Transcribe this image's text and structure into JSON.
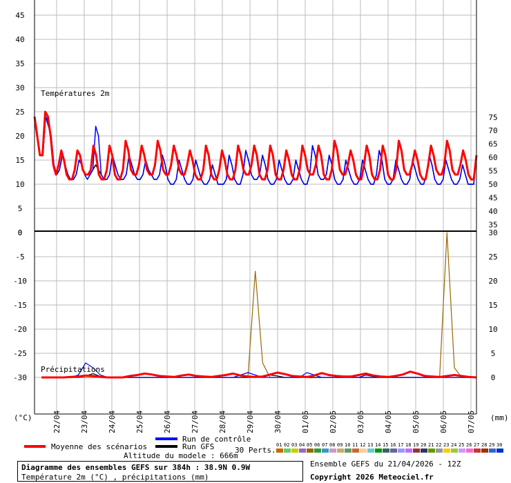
{
  "chart_data": [
    {
      "type": "line",
      "title": "Températures 2m",
      "ylim": [
        0,
        45
      ],
      "y_ticks_left": [
        "45",
        "40",
        "35",
        "30",
        "25",
        "20",
        "15",
        "10",
        "5",
        "0"
      ],
      "y_ticks_right": [
        "75",
        "70",
        "65",
        "60",
        "55",
        "50",
        "45",
        "40",
        "35"
      ],
      "grid": true,
      "x_step_hours": 6,
      "series": [
        {
          "name": "Moyenne des scénarios",
          "color": "#ff0000",
          "values": [
            24,
            20,
            16,
            16,
            25,
            24,
            20,
            14,
            12,
            14,
            17,
            15,
            12,
            11,
            11,
            13,
            17,
            16,
            13,
            12,
            12,
            13,
            18,
            16,
            12,
            11,
            11,
            13,
            18,
            16,
            12,
            11,
            11,
            13,
            19,
            17,
            13,
            12,
            12,
            14,
            18,
            16,
            13,
            12,
            12,
            14,
            19,
            17,
            13,
            12,
            12,
            14,
            18,
            16,
            13,
            12,
            12,
            14,
            17,
            15,
            12,
            11,
            11,
            13,
            18,
            16,
            12,
            11,
            11,
            13,
            17,
            15,
            12,
            11,
            11,
            13,
            18,
            16,
            13,
            12,
            12,
            14,
            18,
            16,
            12,
            11,
            11,
            13,
            18,
            16,
            12,
            11,
            11,
            13,
            17,
            15,
            12,
            11,
            11,
            13,
            18,
            16,
            13,
            12,
            12,
            14,
            18,
            16,
            12,
            11,
            11,
            13,
            19,
            17,
            13,
            12,
            12,
            14,
            17,
            15,
            12,
            11,
            11,
            14,
            18,
            16,
            12,
            11,
            11,
            13,
            18,
            16,
            12,
            11,
            11,
            13,
            19,
            17,
            13,
            12,
            12,
            14,
            17,
            15,
            12,
            11,
            11,
            14,
            18,
            16,
            13,
            12,
            12,
            14,
            19,
            17,
            13,
            12,
            12,
            14,
            17,
            15,
            12,
            11,
            11,
            16
          ]
        },
        {
          "name": "Run de contrôle",
          "color": "#0000ff",
          "values": [
            24,
            20,
            16,
            16,
            24,
            22,
            20,
            14,
            12,
            13,
            16,
            14,
            12,
            11,
            11,
            12,
            15,
            14,
            12,
            11,
            12,
            13,
            22,
            20,
            12,
            11,
            11,
            12,
            16,
            14,
            12,
            11,
            11,
            12,
            16,
            14,
            12,
            11,
            11,
            12,
            15,
            13,
            12,
            11,
            11,
            12,
            16,
            14,
            11,
            10,
            10,
            11,
            15,
            13,
            11,
            10,
            10,
            11,
            15,
            13,
            11,
            10,
            10,
            11,
            14,
            12,
            10,
            10,
            10,
            11,
            16,
            14,
            11,
            10,
            10,
            12,
            17,
            15,
            12,
            11,
            11,
            12,
            16,
            14,
            11,
            10,
            10,
            11,
            15,
            13,
            11,
            10,
            10,
            11,
            15,
            13,
            11,
            10,
            10,
            12,
            18,
            16,
            12,
            11,
            11,
            12,
            16,
            14,
            11,
            10,
            10,
            11,
            15,
            13,
            11,
            10,
            10,
            11,
            15,
            13,
            11,
            10,
            10,
            12,
            17,
            15,
            11,
            10,
            10,
            11,
            15,
            13,
            11,
            10,
            10,
            11,
            15,
            13,
            11,
            10,
            10,
            12,
            16,
            14,
            11,
            10,
            10,
            11,
            15,
            13,
            11,
            10,
            10,
            11,
            14,
            12,
            10,
            10,
            10,
            16
          ]
        },
        {
          "name": "Run GFS",
          "color": "#000000",
          "values": [
            24,
            20,
            16,
            16,
            24,
            23,
            20,
            13,
            12,
            13,
            16,
            14,
            12,
            11,
            11,
            12,
            15,
            14,
            12,
            12,
            12,
            13,
            14,
            13,
            12,
            11,
            11,
            12,
            16,
            14,
            12,
            11,
            11,
            12,
            16,
            14,
            12,
            11,
            11,
            12,
            15,
            13,
            12,
            11,
            11,
            12,
            16,
            14,
            11,
            10,
            10,
            11,
            15,
            13,
            11,
            10,
            10,
            11,
            15,
            13,
            11,
            10,
            10,
            11,
            14,
            12,
            10,
            10,
            10,
            11,
            16,
            14,
            11,
            10,
            10,
            12,
            17,
            15,
            12,
            11,
            11,
            12,
            16,
            14,
            11,
            10,
            10,
            11,
            15,
            13,
            11,
            10,
            10,
            11,
            15,
            13,
            11,
            10,
            10,
            12,
            18,
            16,
            12,
            11,
            11,
            12,
            16,
            14,
            11,
            10,
            10,
            11,
            15,
            13,
            11,
            10,
            10,
            11,
            15,
            13,
            11,
            10,
            10,
            12,
            17,
            15,
            11,
            10,
            10,
            11,
            15,
            13,
            11,
            10,
            10,
            11,
            15,
            13,
            11,
            10,
            10,
            12,
            16,
            14,
            11,
            10,
            10,
            11,
            15,
            13,
            11,
            10,
            10,
            11,
            14,
            12,
            10,
            10,
            10,
            16
          ]
        }
      ]
    },
    {
      "type": "line",
      "title": "Précipitations",
      "ylim": [
        -33,
        0
      ],
      "y_ticks_left": [
        "0",
        "-5",
        "-10",
        "-15",
        "-20",
        "-25",
        "-30"
      ],
      "y_ticks_right": [
        "30",
        "25",
        "20",
        "15",
        "10",
        "5",
        "0"
      ],
      "grid": true,
      "series": [
        {
          "name": "Moyenne des scénarios",
          "color": "#ff0000",
          "values": [
            0,
            0,
            0,
            0,
            0.1,
            0.2,
            0.4,
            0.3,
            0.1,
            0,
            0,
            0,
            0.3,
            0.5,
            0.8,
            0.6,
            0.3,
            0.2,
            0.1,
            0.4,
            0.6,
            0.3,
            0.2,
            0.1,
            0.3,
            0.5,
            0.8,
            0.4,
            0.2,
            0.1,
            0.2,
            0.6,
            1.0,
            0.7,
            0.3,
            0.2,
            0.1,
            0.4,
            0.9,
            0.5,
            0.3,
            0.2,
            0.2,
            0.5,
            0.8,
            0.4,
            0.2,
            0.1,
            0.3,
            0.6,
            1.2,
            0.8,
            0.3,
            0.2,
            0.1,
            0.3,
            0.5,
            0.3,
            0.1,
            0
          ]
        },
        {
          "name": "Run de contrôle",
          "color": "#0000ff",
          "values": [
            0,
            0,
            0,
            0,
            0,
            0.5,
            3.0,
            2.0,
            0.5,
            0,
            0,
            0,
            0,
            0,
            0,
            0,
            0,
            0,
            0,
            0,
            0,
            0,
            0,
            0,
            0,
            0,
            0,
            0.5,
            1.0,
            0.5,
            0,
            0,
            0,
            0,
            0,
            0,
            1.0,
            0.5,
            0,
            0,
            0,
            0,
            0,
            0,
            0.5,
            0.2,
            0,
            0,
            0,
            0,
            0,
            0,
            0,
            0,
            0,
            0,
            0,
            0,
            0,
            0
          ]
        },
        {
          "name": "Run GFS",
          "color": "#000000",
          "values": [
            0,
            0,
            0,
            0,
            0,
            0,
            0.3,
            0.8,
            0.2,
            0,
            0,
            0,
            0,
            0,
            0,
            0,
            0,
            0,
            0,
            0,
            0,
            0,
            0,
            0,
            0,
            0,
            0,
            0,
            0,
            0,
            0,
            0.5,
            0.3,
            0,
            0,
            0,
            0,
            0,
            0,
            0,
            0,
            0,
            0,
            0,
            0,
            0,
            0,
            0,
            0,
            0,
            0,
            0,
            0,
            0,
            0,
            0,
            0,
            0,
            0,
            0
          ]
        },
        {
          "name": "Pert. max",
          "color": "#996600",
          "values": [
            0,
            0,
            0,
            0,
            0,
            0,
            0,
            0,
            0,
            0,
            0,
            0,
            0,
            0,
            0,
            0,
            0,
            0,
            0,
            0,
            0,
            0,
            0,
            0,
            0,
            0,
            0,
            0,
            0,
            22,
            3,
            0,
            0,
            0,
            0,
            0,
            0,
            0,
            0,
            0,
            0,
            0,
            0,
            0,
            0,
            0,
            0,
            0,
            0,
            0,
            0,
            0,
            0,
            0,
            0,
            30,
            2,
            0,
            0,
            0
          ]
        }
      ]
    }
  ],
  "x_labels": [
    "22/04",
    "23/04",
    "24/04",
    "25/04",
    "26/04",
    "27/04",
    "28/04",
    "29/04",
    "30/04",
    "01/05",
    "02/05",
    "03/05",
    "04/05",
    "05/05",
    "06/05",
    "07/05"
  ],
  "unit_left": "(°C)",
  "unit_right": "(mm)",
  "legend": {
    "mean": "Moyenne des scénarios",
    "control": "Run de contrôle",
    "gfs": "Run GFS",
    "perts_label": "30 Perts.",
    "altitude": "Altitude du modele : 666m",
    "pert_numbers": [
      "01",
      "02",
      "03",
      "04",
      "05",
      "06",
      "07",
      "08",
      "09",
      "10",
      "11",
      "12",
      "13",
      "14",
      "15",
      "16",
      "17",
      "18",
      "19",
      "20",
      "21",
      "22",
      "23",
      "24",
      "25",
      "26",
      "27",
      "28",
      "29",
      "30"
    ],
    "pert_colors": [
      "#cc6600",
      "#66cc66",
      "#cccc00",
      "#9966cc",
      "#996600",
      "#339933",
      "#3399cc",
      "#cc99cc",
      "#ccaa66",
      "#669966",
      "#cc6633",
      "#ffcc99",
      "#66cccc",
      "#009900",
      "#336666",
      "#666699",
      "#9999ff",
      "#cc66ff",
      "#993333",
      "#333366",
      "#669900",
      "#999999",
      "#ffcc00",
      "#99cc33",
      "#cc99ff",
      "#ff66cc",
      "#cc3333",
      "#993300",
      "#3366cc",
      "#0033cc"
    ]
  },
  "footer": {
    "title": "Diagramme des ensembles GEFS sur 384h : 38.9N 0.9W",
    "subtitle": "Température 2m (°C) , précipitations (mm)",
    "run": "Ensemble GEFS du 21/04/2026 - 12Z",
    "copyright": "Copyright 2026 Meteociel.fr"
  }
}
